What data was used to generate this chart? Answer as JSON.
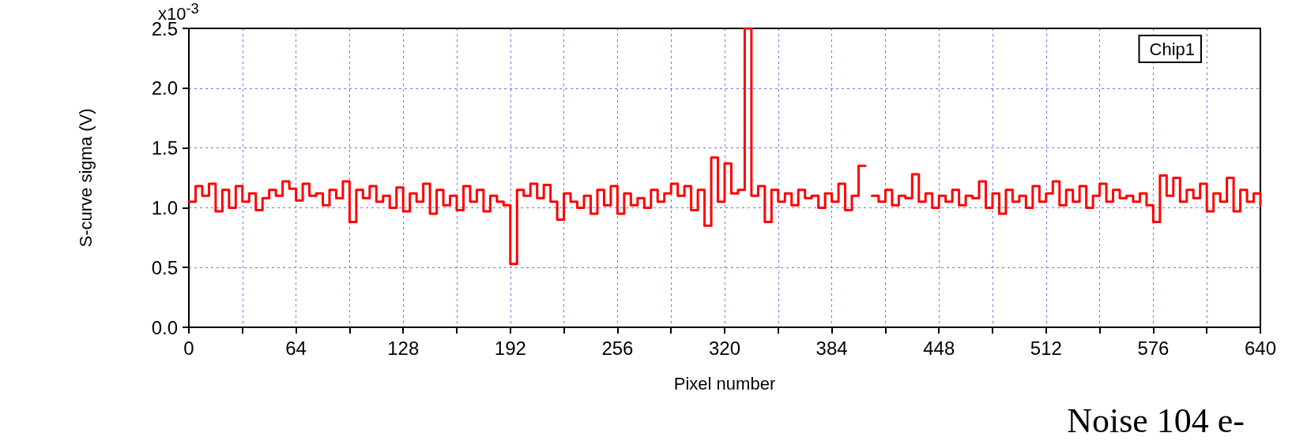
{
  "chart_data": {
    "type": "step",
    "xlabel": "Pixel number",
    "ylabel": "S-curve sigma (V)",
    "annotations": [
      "Noise 104 e-",
      "x10$^{-3}$"
    ],
    "xlim": [
      0,
      640
    ],
    "ylim": [
      0,
      2.5
    ],
    "xticks": [
      0,
      {
        "value": 32,
        "label": null
      },
      64,
      {
        "value": 96,
        "label": null
      },
      128,
      {
        "value": 160,
        "label": null
      },
      192,
      {
        "value": 224,
        "label": null
      },
      256,
      {
        "value": 288,
        "label": null
      },
      320,
      {
        "value": 352,
        "label": null
      },
      384,
      {
        "value": 416,
        "label": null
      },
      448,
      {
        "value": 480,
        "label": null
      },
      512,
      {
        "value": 544,
        "label": null
      },
      576,
      {
        "value": 608,
        "label": null
      },
      640
    ],
    "yticks": [
      {
        "value": 0,
        "label": "0.0"
      },
      {
        "value": 0.5,
        "label": "0.5"
      },
      {
        "value": 1,
        "label": "1.0"
      },
      {
        "value": 1.5,
        "label": "1.5"
      },
      {
        "value": 2,
        "label": "2.0"
      },
      {
        "value": 2.5,
        "label": "2.5"
      }
    ],
    "grid": true,
    "legend": "top right",
    "marker": "none",
    "line_style": "solid",
    "x": [
      0,
      4,
      8,
      12,
      16,
      20,
      24,
      28,
      32,
      36,
      40,
      44,
      48,
      52,
      56,
      60,
      64,
      68,
      72,
      76,
      80,
      84,
      88,
      92,
      96,
      100,
      104,
      108,
      112,
      116,
      120,
      124,
      128,
      132,
      136,
      140,
      144,
      148,
      152,
      156,
      160,
      164,
      168,
      172,
      176,
      180,
      184,
      188,
      192,
      196,
      200,
      204,
      208,
      212,
      216,
      220,
      224,
      228,
      232,
      236,
      240,
      244,
      248,
      252,
      256,
      260,
      264,
      268,
      272,
      276,
      280,
      284,
      288,
      292,
      296,
      300,
      304,
      308,
      312,
      316,
      320,
      324,
      328,
      332,
      336,
      340,
      344,
      348,
      352,
      356,
      360,
      364,
      368,
      372,
      376,
      380,
      384,
      388,
      392,
      396,
      400,
      404,
      408,
      412,
      416,
      420,
      424,
      428,
      432,
      436,
      440,
      444,
      448,
      452,
      456,
      460,
      464,
      468,
      472,
      476,
      480,
      484,
      488,
      492,
      496,
      500,
      504,
      508,
      512,
      516,
      520,
      524,
      528,
      532,
      536,
      540,
      544,
      548,
      552,
      556,
      560,
      564,
      568,
      572,
      576,
      580,
      584,
      588,
      592,
      596,
      600,
      604,
      608,
      612,
      616,
      620,
      624,
      628,
      632,
      636,
      640
    ],
    "series": [
      {
        "name": "Chip1",
        "color": "#ff0000",
        "values": [
          1.05,
          1.18,
          1.1,
          1.2,
          0.97,
          1.15,
          1.0,
          1.18,
          1.05,
          1.12,
          0.98,
          1.08,
          1.15,
          1.1,
          1.22,
          1.16,
          1.06,
          1.2,
          1.1,
          1.12,
          1.02,
          1.15,
          1.08,
          1.22,
          0.88,
          1.15,
          1.08,
          1.18,
          1.05,
          1.1,
          1.0,
          1.17,
          0.97,
          1.12,
          1.05,
          1.2,
          0.95,
          1.15,
          1.02,
          1.1,
          0.98,
          1.18,
          1.05,
          1.15,
          0.97,
          1.1,
          1.05,
          1.02,
          0.53,
          1.15,
          1.1,
          1.2,
          1.08,
          1.19,
          1.05,
          0.9,
          1.12,
          1.05,
          1.0,
          1.1,
          0.95,
          1.15,
          1.02,
          1.18,
          0.95,
          1.12,
          1.02,
          1.08,
          1.0,
          1.15,
          1.05,
          1.12,
          1.2,
          1.1,
          1.18,
          0.98,
          1.15,
          0.85,
          1.42,
          1.05,
          1.37,
          1.12,
          1.15,
          2.5,
          1.1,
          1.18,
          0.88,
          1.15,
          1.05,
          1.12,
          1.02,
          1.15,
          1.08,
          1.1,
          1.0,
          1.12,
          1.05,
          1.2,
          0.98,
          1.1,
          1.35,
          null,
          1.1,
          1.05,
          1.15,
          1.02,
          1.1,
          1.08,
          1.28,
          1.05,
          1.12,
          1.0,
          1.1,
          1.05,
          1.15,
          1.02,
          1.1,
          1.08,
          1.22,
          1.0,
          1.12,
          0.95,
          1.15,
          1.05,
          1.1,
          1.0,
          1.18,
          1.05,
          1.12,
          1.22,
          1.02,
          1.15,
          1.05,
          1.18,
          1.0,
          1.1,
          1.2,
          1.05,
          1.15,
          1.08,
          1.1,
          1.05,
          1.12,
          1.02,
          0.88,
          1.27,
          1.1,
          1.25,
          1.05,
          1.15,
          1.08,
          1.2,
          0.97,
          1.12,
          1.05,
          1.25,
          0.97,
          1.15,
          1.05,
          1.12,
          1.02
        ]
      }
    ]
  }
}
